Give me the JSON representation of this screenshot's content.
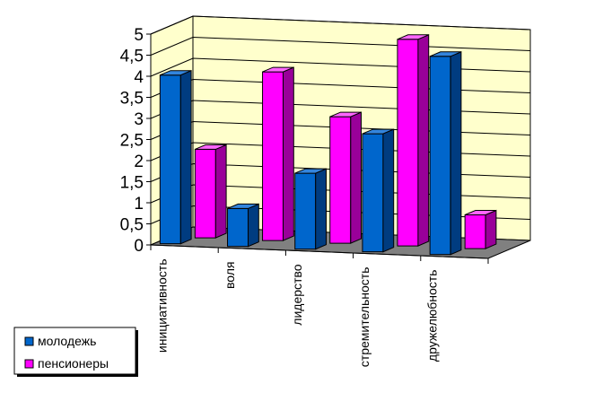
{
  "chart_data": {
    "type": "bar",
    "subtype": "3d-clustered-column",
    "categories": [
      "инициативность",
      "воля",
      "лидерство",
      "стремительность",
      "дружелюбность"
    ],
    "series": [
      {
        "name": "молодежь",
        "values": [
          4.0,
          0.9,
          1.8,
          2.8,
          4.7
        ],
        "color": "#0066cc",
        "side_color": "#003c80",
        "top_color": "#3385dd"
      },
      {
        "name": "пенсионеры",
        "values": [
          2.1,
          4.0,
          3.0,
          4.9,
          0.8
        ],
        "color": "#ff00ff",
        "side_color": "#990099",
        "top_color": "#ff66ff"
      }
    ],
    "y_ticks": [
      "0",
      "0,5",
      "1",
      "1,5",
      "2",
      "2,5",
      "3",
      "3,5",
      "4",
      "4,5",
      "5"
    ],
    "ylim": [
      0,
      5
    ],
    "grid": true,
    "legend_position": "bottom-left",
    "back_wall_color": "#ffffcc",
    "floor_color": "#808080"
  }
}
